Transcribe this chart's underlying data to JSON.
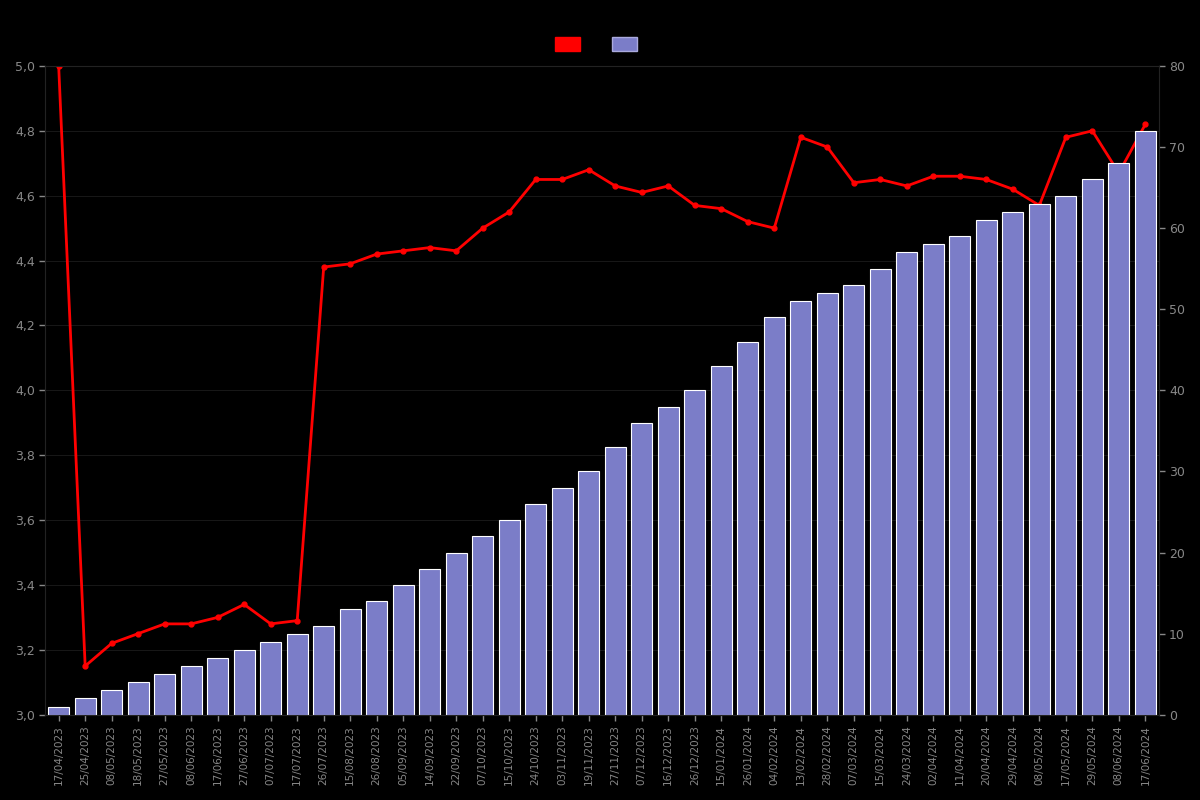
{
  "dates": [
    "17/04/2023",
    "25/04/2023",
    "08/05/2023",
    "18/05/2023",
    "27/05/2023",
    "08/06/2023",
    "17/06/2023",
    "27/06/2023",
    "07/07/2023",
    "17/07/2023",
    "26/07/2023",
    "15/08/2023",
    "26/08/2023",
    "05/09/2023",
    "14/09/2023",
    "22/09/2023",
    "07/10/2023",
    "15/10/2023",
    "24/10/2023",
    "03/11/2023",
    "19/11/2023",
    "27/11/2023",
    "07/12/2023",
    "16/12/2023",
    "26/12/2023",
    "15/01/2024",
    "26/01/2024",
    "04/02/2024",
    "13/02/2024",
    "28/02/2024",
    "07/03/2024",
    "15/03/2024",
    "24/03/2024",
    "02/04/2024",
    "11/04/2024",
    "20/04/2024",
    "29/04/2024",
    "08/05/2024",
    "17/05/2024",
    "29/05/2024",
    "08/06/2024",
    "17/06/2024"
  ],
  "ratings": [
    5.0,
    3.15,
    3.22,
    3.25,
    3.28,
    3.28,
    3.3,
    3.34,
    3.28,
    3.29,
    4.38,
    4.39,
    4.42,
    4.43,
    4.44,
    4.43,
    4.5,
    4.55,
    4.65,
    4.65,
    4.68,
    4.63,
    4.61,
    4.63,
    4.57,
    4.56,
    4.52,
    4.5,
    4.78,
    4.75,
    4.64,
    4.65,
    4.63,
    4.66,
    4.66,
    4.65,
    4.62,
    4.57,
    4.78,
    4.8,
    4.67,
    4.82
  ],
  "counts": [
    1,
    2,
    3,
    4,
    5,
    6,
    7,
    8,
    9,
    10,
    11,
    13,
    14,
    16,
    18,
    20,
    22,
    24,
    26,
    28,
    30,
    33,
    36,
    38,
    40,
    43,
    46,
    49,
    51,
    52,
    53,
    55,
    57,
    58,
    59,
    61,
    62,
    63,
    64,
    66,
    68,
    72
  ],
  "bar_color": "#7b7dc8",
  "bar_edge_color": "#ffffff",
  "line_color": "#ff0000",
  "background_color": "#000000",
  "text_color": "#888888",
  "ylim_left": [
    3.0,
    5.0
  ],
  "ylim_right": [
    0,
    80
  ],
  "yticks_left": [
    3.0,
    3.2,
    3.4,
    3.6,
    3.8,
    4.0,
    4.2,
    4.4,
    4.6,
    4.8,
    5.0
  ],
  "yticks_right": [
    0,
    10,
    20,
    30,
    40,
    50,
    60,
    70,
    80
  ],
  "marker_size": 3.5,
  "line_width": 2.0
}
